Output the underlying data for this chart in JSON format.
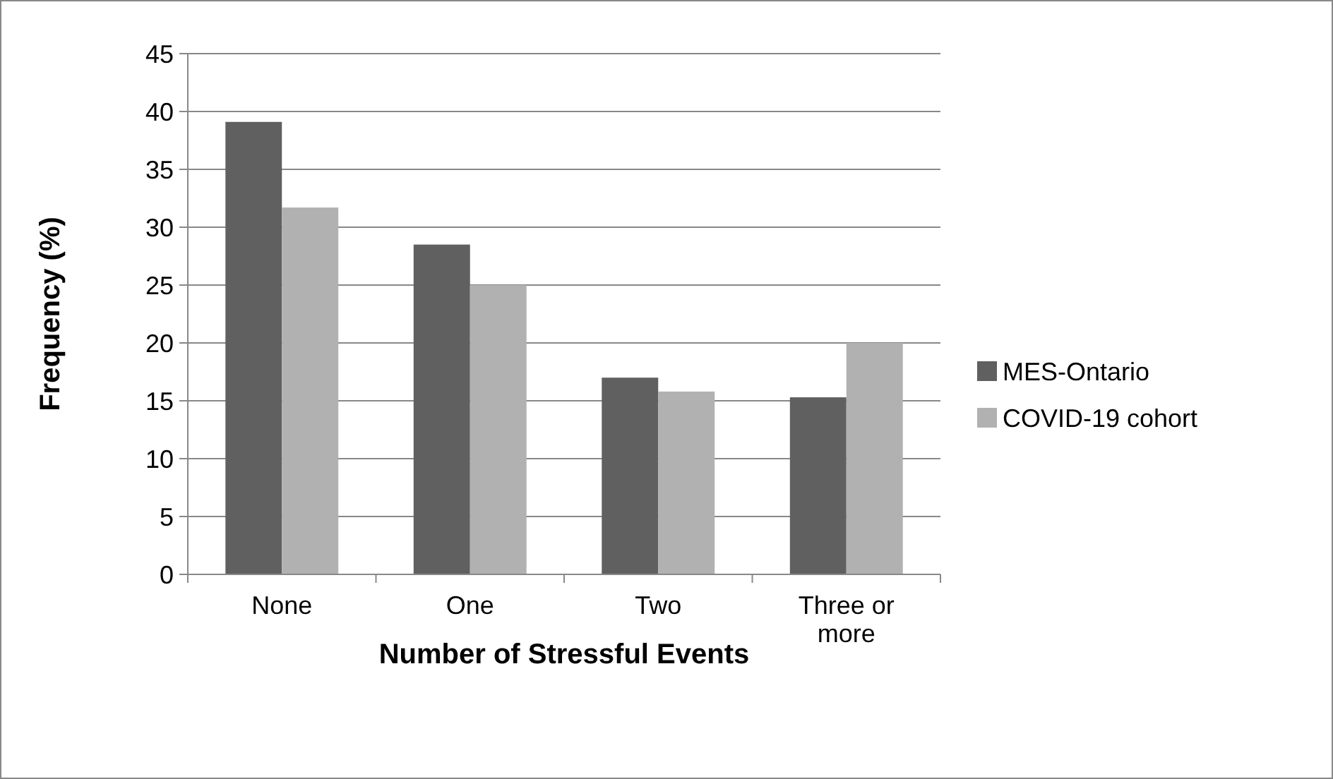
{
  "chart_data": {
    "type": "bar",
    "xlabel": "Number of Stressful Events",
    "ylabel": "Frequency (%)",
    "categories": [
      "None",
      "One",
      "Two",
      "Three or more"
    ],
    "series": [
      {
        "name": "MES-Ontario",
        "color": "#606060",
        "values": [
          39.1,
          28.5,
          17.0,
          15.3
        ]
      },
      {
        "name": "COVID-19 cohort",
        "color": "#b1b1b1",
        "values": [
          31.7,
          25.0,
          15.8,
          20.0
        ]
      }
    ],
    "ylim": [
      0,
      45
    ],
    "yticks": [
      0,
      5,
      10,
      15,
      20,
      25,
      30,
      35,
      40,
      45
    ],
    "grid": "y",
    "legend": "right"
  }
}
